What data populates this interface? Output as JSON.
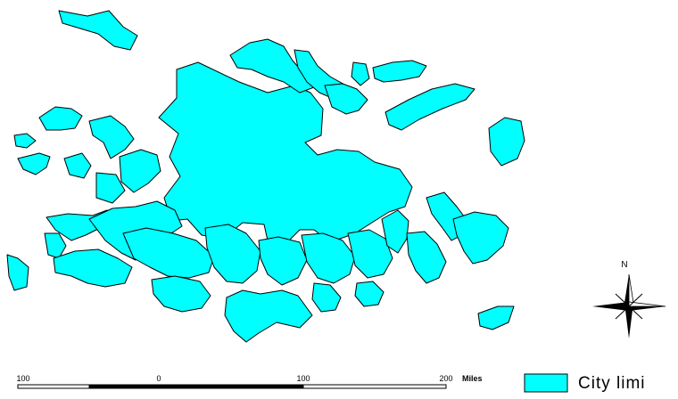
{
  "map": {
    "fill_color": "#00ffff",
    "outline_color": "#000000"
  },
  "scale_bar": {
    "labels": [
      "100",
      "0",
      "100",
      "200"
    ],
    "units": "Miles"
  },
  "north_arrow": {
    "label": "N",
    "icon": "compass-rose-icon"
  },
  "legend": {
    "label": "City limi",
    "swatch_color": "#00ffff"
  }
}
